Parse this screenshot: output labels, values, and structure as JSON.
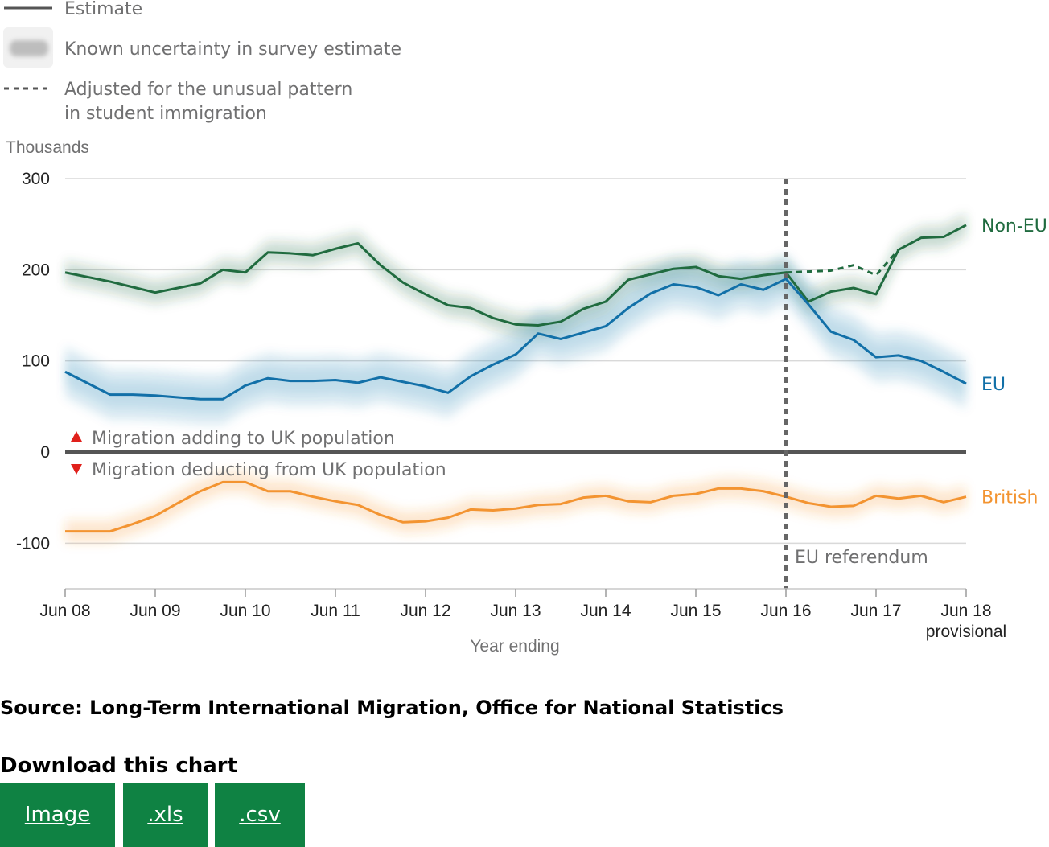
{
  "legend": {
    "estimate": "Estimate",
    "uncertainty": "Known uncertainty in survey estimate",
    "adjusted_line1": "Adjusted for the unusual pattern",
    "adjusted_line2": "in student immigration"
  },
  "annotations": {
    "adding": "Migration adding to UK population",
    "deducting": "Migration deducting from UK population",
    "referendum": "EU referendum",
    "provisional": "provisional"
  },
  "colors": {
    "non_eu": "#206b3f",
    "eu": "#1270a8",
    "british": "#f39431",
    "grid": "#d9d9d9",
    "zero_line": "#555555",
    "referendum_line": "#666666",
    "up_arrow": "#e0201b",
    "button": "#0f8243"
  },
  "chart_data": {
    "type": "line",
    "ylabel": "Thousands",
    "xlabel": "Year ending",
    "ylim": [
      -150,
      300
    ],
    "yticks": [
      300,
      200,
      100,
      0,
      -100
    ],
    "xlim": [
      2008.5,
      2018.5
    ],
    "x_tick_values": [
      2008.5,
      2009.5,
      2010.5,
      2011.5,
      2012.5,
      2013.5,
      2014.5,
      2015.5,
      2016.5,
      2017.5,
      2018.5
    ],
    "x_tick_labels": [
      "Jun 08",
      "Jun 09",
      "Jun 10",
      "Jun 11",
      "Jun 12",
      "Jun 13",
      "Jun 14",
      "Jun 15",
      "Jun 16",
      "Jun 17",
      "Jun 18"
    ],
    "referendum_x": 2016.5,
    "series": [
      {
        "name": "Non-EU",
        "x": [
          2008.5,
          2009.0,
          2009.25,
          2009.5,
          2009.75,
          2010.0,
          2010.25,
          2010.5,
          2010.75,
          2011.0,
          2011.25,
          2011.5,
          2011.75,
          2012.0,
          2012.25,
          2012.5,
          2012.75,
          2013.0,
          2013.25,
          2013.5,
          2013.75,
          2014.0,
          2014.25,
          2014.5,
          2014.75,
          2015.0,
          2015.25,
          2015.5,
          2015.75,
          2016.0,
          2016.25,
          2016.5,
          2016.75,
          2017.0,
          2017.25,
          2017.5,
          2017.75,
          2018.0,
          2018.25,
          2018.5
        ],
        "values": [
          197,
          187,
          181,
          175,
          180,
          185,
          200,
          197,
          219,
          218,
          216,
          223,
          229,
          205,
          186,
          173,
          161,
          158,
          147,
          140,
          139,
          143,
          157,
          165,
          189,
          195,
          201,
          203,
          193,
          190,
          194,
          197,
          165,
          176,
          180,
          173,
          222,
          235,
          236,
          249
        ],
        "band": 15
      },
      {
        "name": "EU",
        "x": [
          2008.5,
          2009.0,
          2009.25,
          2009.5,
          2009.75,
          2010.0,
          2010.25,
          2010.5,
          2010.75,
          2011.0,
          2011.25,
          2011.5,
          2011.75,
          2012.0,
          2012.25,
          2012.5,
          2012.75,
          2013.0,
          2013.25,
          2013.5,
          2013.75,
          2014.0,
          2014.25,
          2014.5,
          2014.75,
          2015.0,
          2015.25,
          2015.5,
          2015.75,
          2016.0,
          2016.25,
          2016.5,
          2016.75,
          2017.0,
          2017.25,
          2017.5,
          2017.75,
          2018.0,
          2018.25,
          2018.5
        ],
        "values": [
          88,
          63,
          63,
          62,
          60,
          58,
          58,
          73,
          81,
          78,
          78,
          79,
          76,
          82,
          77,
          72,
          65,
          83,
          96,
          107,
          130,
          124,
          131,
          138,
          158,
          174,
          184,
          181,
          172,
          184,
          178,
          190,
          162,
          132,
          123,
          104,
          106,
          100,
          88,
          75
        ],
        "band": 28
      },
      {
        "name": "British",
        "x": [
          2008.5,
          2009.0,
          2009.25,
          2009.5,
          2009.75,
          2010.0,
          2010.25,
          2010.5,
          2010.75,
          2011.0,
          2011.25,
          2011.5,
          2011.75,
          2012.0,
          2012.25,
          2012.5,
          2012.75,
          2013.0,
          2013.25,
          2013.5,
          2013.75,
          2014.0,
          2014.25,
          2014.5,
          2014.75,
          2015.0,
          2015.25,
          2015.5,
          2015.75,
          2016.0,
          2016.25,
          2016.5,
          2016.75,
          2017.0,
          2017.25,
          2017.5,
          2017.75,
          2018.0,
          2018.25,
          2018.5
        ],
        "values": [
          -87,
          -87,
          -79,
          -70,
          -56,
          -43,
          -33,
          -33,
          -43,
          -43,
          -49,
          -54,
          -58,
          -69,
          -77,
          -76,
          -72,
          -63,
          -64,
          -62,
          -58,
          -57,
          -50,
          -48,
          -54,
          -55,
          -48,
          -46,
          -40,
          -40,
          -43,
          -49,
          -56,
          -60,
          -59,
          -48,
          -51,
          -48,
          -55,
          -49
        ],
        "band": 14
      },
      {
        "name": "Non-EU adjusted for the unusual pattern in student immigration",
        "x": [
          2016.5,
          2016.75,
          2017.0,
          2017.25,
          2017.5,
          2017.75
        ],
        "values": [
          197,
          198,
          199,
          205,
          194,
          222
        ],
        "dashed": true
      }
    ]
  },
  "source_text": "Source: Long-Term International Migration, Office for National Statistics",
  "download": {
    "title": "Download this chart",
    "image_label": "Image",
    "xls_label": ".xls",
    "csv_label": ".csv"
  }
}
